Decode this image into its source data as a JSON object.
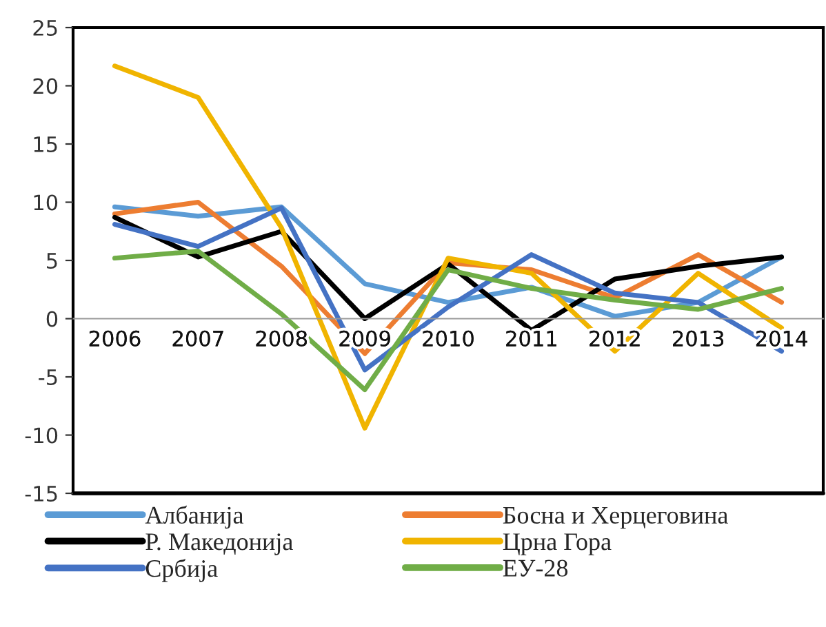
{
  "chart_data": {
    "type": "line",
    "categories": [
      "2006",
      "2007",
      "2008",
      "2009",
      "2010",
      "2011",
      "2012",
      "2013",
      "2014"
    ],
    "series": [
      {
        "name": "Албанија",
        "color": "#5b9bd5",
        "values": [
          9.6,
          8.8,
          9.6,
          3.0,
          1.4,
          2.7,
          0.2,
          1.4,
          5.3
        ]
      },
      {
        "name": "Босна и Херцеговина",
        "color": "#ed7d31",
        "values": [
          9.0,
          10.0,
          4.5,
          -3.0,
          4.8,
          4.2,
          1.8,
          5.5,
          1.4
        ]
      },
      {
        "name": "Р. Македонија",
        "color": "#000000",
        "values": [
          8.7,
          5.3,
          7.5,
          0.0,
          4.7,
          -1.0,
          3.4,
          4.5,
          5.3
        ]
      },
      {
        "name": "Црна Гора",
        "color": "#f0b400",
        "values": [
          21.7,
          19.0,
          7.8,
          -9.4,
          5.2,
          3.9,
          -2.8,
          3.9,
          -0.8
        ]
      },
      {
        "name": "Србија",
        "color": "#4472c4",
        "values": [
          8.1,
          6.2,
          9.5,
          -4.4,
          1.0,
          5.5,
          2.2,
          1.4,
          -2.8
        ]
      },
      {
        "name": "ЕУ-28",
        "color": "#70ad47",
        "values": [
          5.2,
          5.8,
          0.4,
          -6.1,
          4.2,
          2.6,
          1.6,
          0.8,
          2.6
        ]
      }
    ],
    "ylim": [
      -15,
      25
    ],
    "yticks": [
      -15,
      -10,
      -5,
      0,
      5,
      10,
      15,
      20,
      25
    ],
    "grid": false,
    "legend": "bottom",
    "marker": "none",
    "line_style": "solid"
  }
}
